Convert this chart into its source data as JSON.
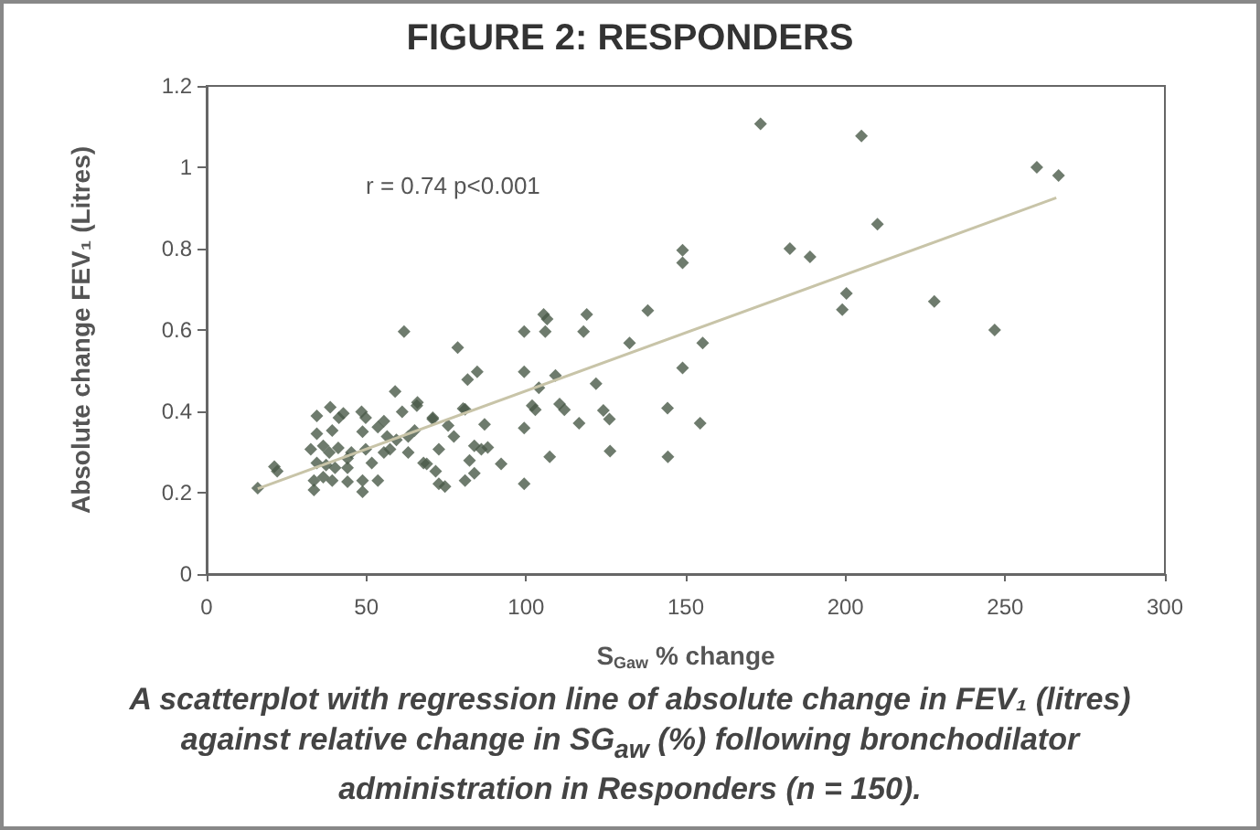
{
  "chart_data": {
    "type": "scatter",
    "title": "FIGURE 2: RESPONDERS",
    "xlabel": "S$_{Gaw}$ % change",
    "ylabel": "Absolute change FEV₁ (Litres)",
    "annotations": [
      "r = 0.74 p<0.001",
      "A scatterplot with regression line of absolute change in FEV₁ (litres) against relative change in SG$_{aw}$ (%) following bronchodilator administration in Responders (n = 150)."
    ],
    "xlim": [
      0,
      300
    ],
    "xticks": [
      0,
      50,
      100,
      150,
      200,
      250,
      300
    ],
    "ylim": [
      0,
      1.2
    ],
    "yticks": [
      0,
      0.2,
      0.4,
      0.6,
      0.8,
      1,
      1.2
    ],
    "grid": false,
    "series": [
      {
        "type": "scatter",
        "marker": "diamond",
        "color": "#4a5a48",
        "x": [
          173.4,
          205,
          210,
          182.6,
          188.9,
          200.3,
          199,
          227.8,
          246.7,
          259.9,
          266.7,
          149,
          149,
          138.1,
          119,
          105.5,
          106.6,
          106,
          118,
          99.4,
          132.4,
          155.3,
          78.6,
          149,
          99.4,
          109.2,
          84.7,
          81.7,
          121.9,
          104,
          101.9,
          102.9,
          110.5,
          112,
          124.2,
          126.1,
          144.3,
          116.6,
          154.5,
          99.4,
          80.9,
          87,
          107.4,
          126.3,
          144.4,
          99.4,
          92.2,
          83.8,
          86,
          88,
          82.3,
          83.8,
          80.9,
          61.8,
          80.3,
          65.8,
          70.8,
          75.6,
          77.4,
          72.7,
          68.9,
          71.7,
          72.7,
          74.6,
          65.1,
          63.1,
          59,
          66,
          34.5,
          38.7,
          41.4,
          42.8,
          48.5,
          49.8,
          55.5,
          53.6,
          61.2,
          70.8,
          34.5,
          39.3,
          48.8,
          56.5,
          59.4,
          32.6,
          36.5,
          38.4,
          41.2,
          45.3,
          44.1,
          49.8,
          55.5,
          57.4,
          63.1,
          34.5,
          37.4,
          40.2,
          44.1,
          51.7,
          67.9,
          33.6,
          36.5,
          39.3,
          44.1,
          48.8,
          53.6,
          33.6,
          48.8,
          21.2,
          22.1,
          16
        ],
        "values": [
          1.107,
          1.077,
          0.86,
          0.8,
          0.78,
          0.69,
          0.65,
          0.67,
          0.6,
          1.0,
          0.98,
          0.796,
          0.765,
          0.648,
          0.638,
          0.638,
          0.627,
          0.596,
          0.596,
          0.596,
          0.568,
          0.568,
          0.557,
          0.507,
          0.497,
          0.488,
          0.497,
          0.478,
          0.468,
          0.458,
          0.414,
          0.404,
          0.418,
          0.404,
          0.402,
          0.381,
          0.408,
          0.371,
          0.371,
          0.359,
          0.405,
          0.368,
          0.288,
          0.302,
          0.288,
          0.222,
          0.271,
          0.315,
          0.307,
          0.311,
          0.279,
          0.248,
          0.23,
          0.596,
          0.407,
          0.414,
          0.384,
          0.365,
          0.338,
          0.307,
          0.271,
          0.253,
          0.222,
          0.215,
          0.353,
          0.338,
          0.449,
          0.422,
          0.389,
          0.41,
          0.384,
          0.395,
          0.399,
          0.384,
          0.376,
          0.361,
          0.399,
          0.381,
          0.345,
          0.353,
          0.35,
          0.338,
          0.33,
          0.307,
          0.315,
          0.299,
          0.31,
          0.299,
          0.284,
          0.307,
          0.299,
          0.307,
          0.299,
          0.273,
          0.268,
          0.261,
          0.261,
          0.273,
          0.273,
          0.23,
          0.238,
          0.23,
          0.227,
          0.23,
          0.23,
          0.207,
          0.202,
          0.264,
          0.253,
          0.211
        ]
      },
      {
        "type": "line",
        "marker": "none",
        "color": "#c8c4a8",
        "x": [
          16,
          266
        ],
        "values": [
          0.21,
          0.925
        ]
      }
    ]
  }
}
